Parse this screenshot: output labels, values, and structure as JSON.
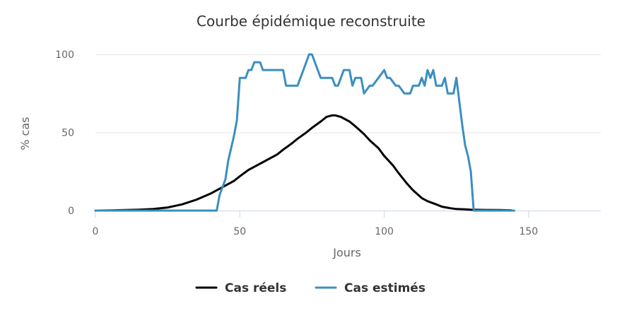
{
  "chart_data": {
    "type": "line",
    "title": "Courbe épidémique reconstruite",
    "xlabel": "Jours",
    "ylabel": "% cas",
    "xlim": [
      0,
      175
    ],
    "ylim": [
      0,
      100
    ],
    "xticks": [
      0,
      50,
      100,
      150
    ],
    "yticks": [
      0,
      50,
      100
    ],
    "grid": true,
    "legend_position": "bottom-center",
    "series": [
      {
        "name": "Cas réels",
        "color": "#000000",
        "x": [
          0,
          5,
          10,
          15,
          20,
          25,
          30,
          35,
          40,
          43,
          45,
          48,
          50,
          53,
          55,
          58,
          60,
          63,
          65,
          68,
          70,
          73,
          75,
          78,
          80,
          82,
          83,
          85,
          88,
          90,
          93,
          95,
          98,
          100,
          103,
          105,
          108,
          110,
          113,
          115,
          118,
          120,
          123,
          125,
          128,
          130,
          135,
          140,
          144
        ],
        "y": [
          0,
          0.1,
          0.3,
          0.6,
          1,
          2,
          4,
          7,
          11,
          14,
          16,
          19,
          22,
          26,
          28,
          31,
          33,
          36,
          39,
          43,
          46,
          50,
          53,
          57,
          60,
          61,
          61,
          60,
          57,
          54,
          49,
          45,
          40,
          35,
          29,
          24,
          17,
          13,
          8,
          6,
          4,
          2.5,
          1.5,
          1,
          0.8,
          0.6,
          0.4,
          0.3,
          0.2
        ]
      },
      {
        "name": "Cas estimés",
        "color": "#3a8fc0",
        "x": [
          0,
          20,
          42,
          43,
          45,
          46,
          48,
          49,
          50,
          52,
          53,
          54,
          55,
          57,
          58,
          60,
          65,
          66,
          67,
          70,
          72,
          74,
          75,
          76,
          78,
          80,
          82,
          83,
          84,
          86,
          88,
          89,
          90,
          92,
          93,
          95,
          96,
          98,
          100,
          101,
          102,
          104,
          105,
          107,
          109,
          110,
          112,
          113,
          114,
          115,
          116,
          117,
          118,
          120,
          121,
          122,
          124,
          125,
          127,
          128,
          129,
          130,
          131,
          135,
          140,
          145
        ],
        "y": [
          0,
          0,
          0,
          10,
          20,
          32,
          48,
          58,
          85,
          85,
          90,
          90,
          95,
          95,
          90,
          90,
          90,
          80,
          80,
          80,
          90,
          100,
          100,
          95,
          85,
          85,
          85,
          80,
          80,
          90,
          90,
          80,
          85,
          85,
          75,
          80,
          80,
          85,
          90,
          85,
          85,
          80,
          80,
          75,
          75,
          80,
          80,
          85,
          80,
          90,
          85,
          90,
          80,
          80,
          85,
          75,
          75,
          85,
          55,
          42,
          35,
          25,
          0,
          0,
          0,
          0
        ]
      }
    ]
  }
}
